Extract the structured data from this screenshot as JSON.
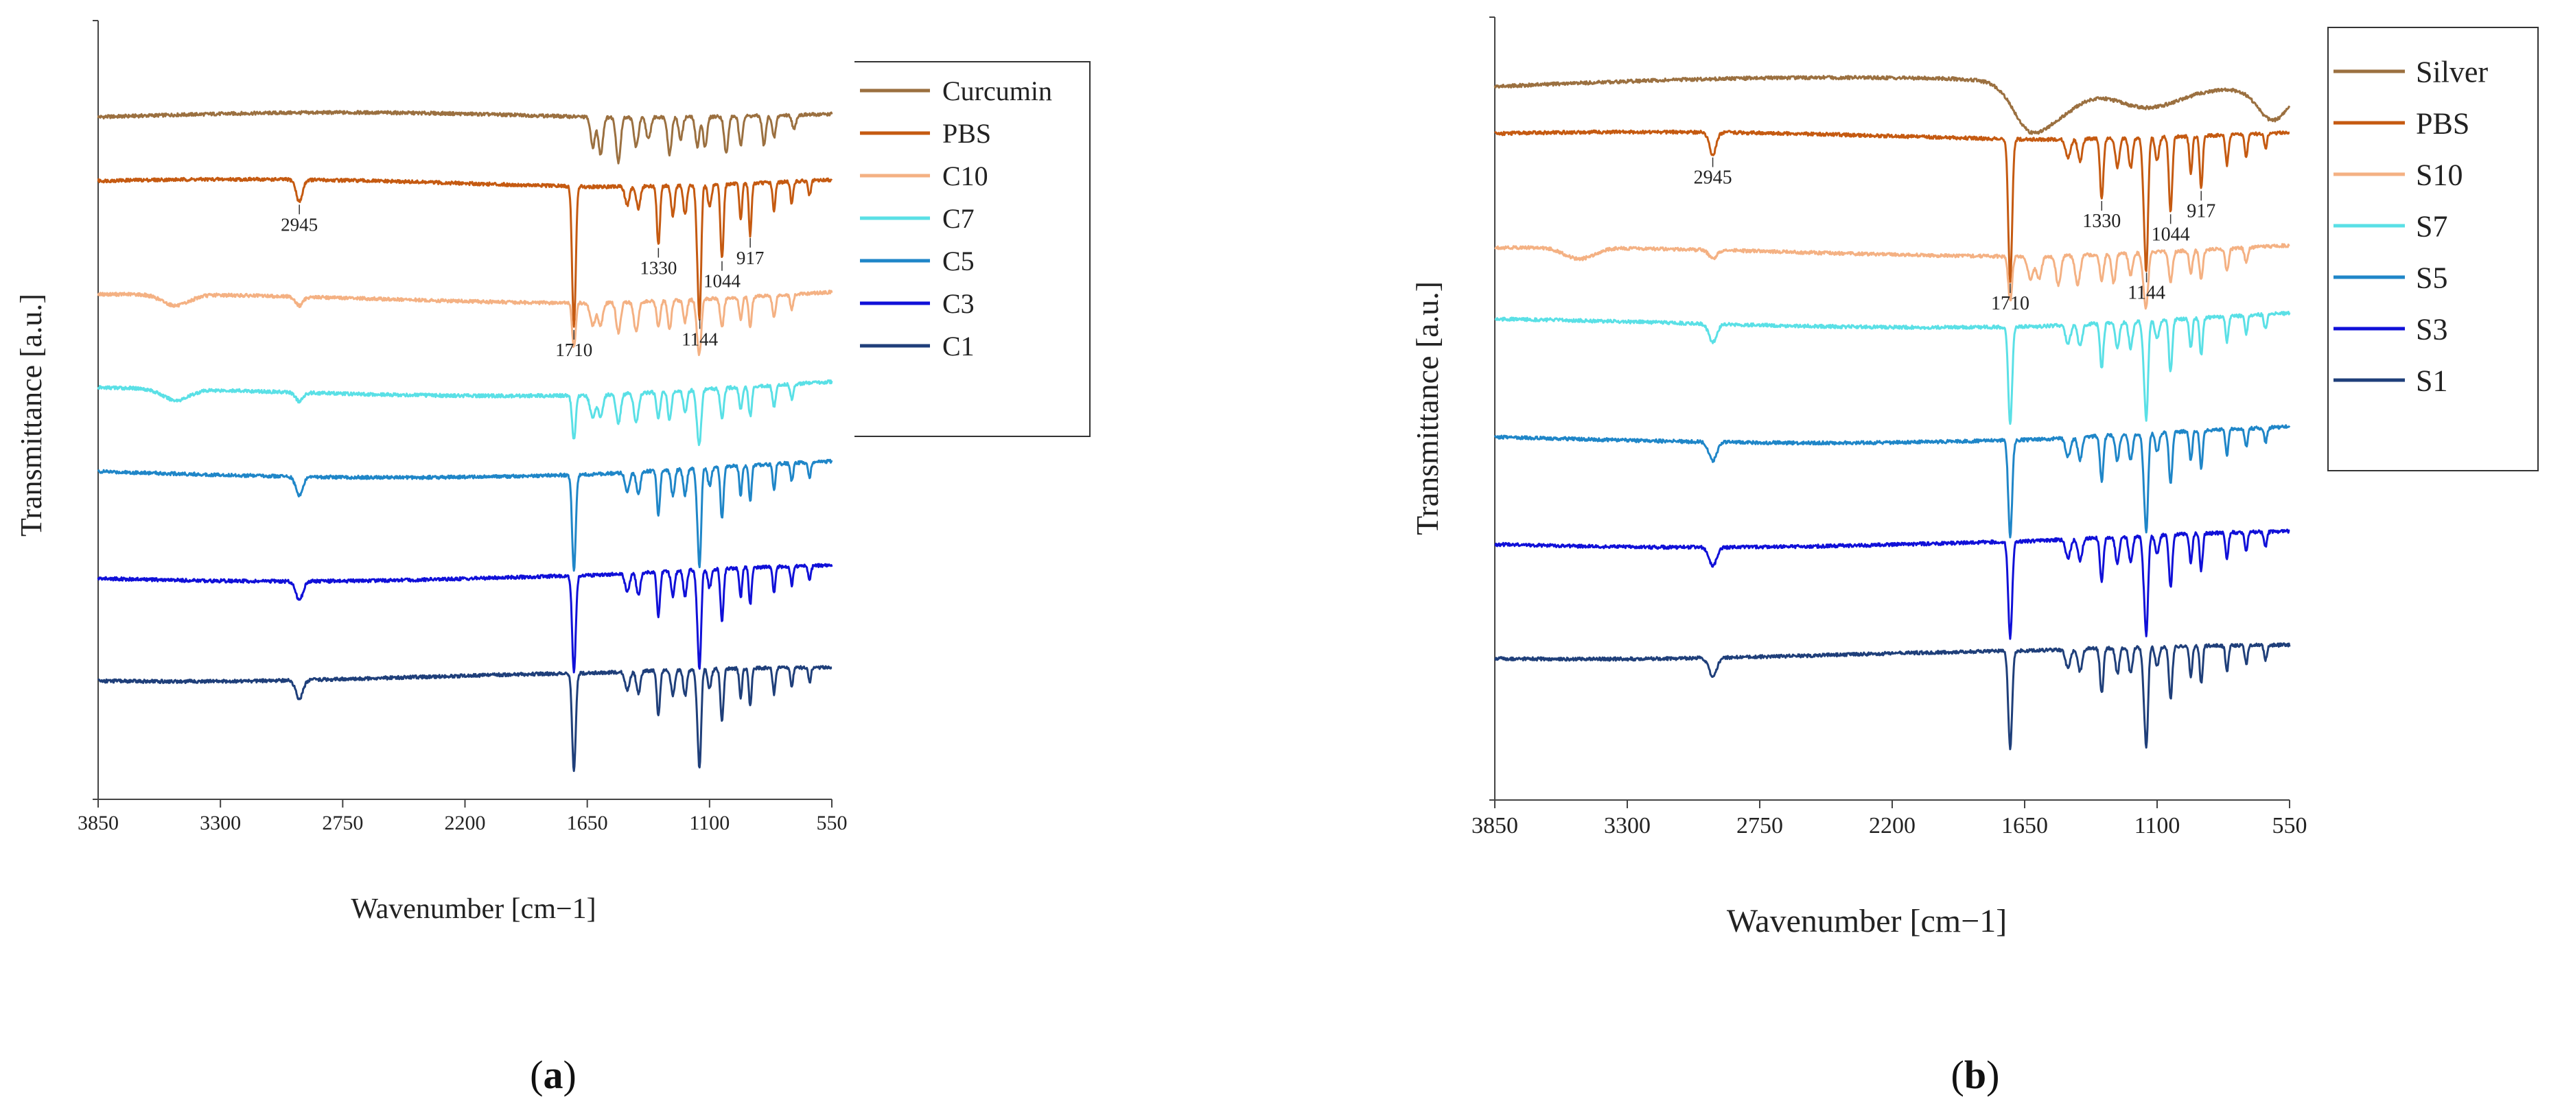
{
  "panels": [
    {
      "caption": "(a)",
      "chart_data": {
        "type": "line",
        "title": "",
        "xlabel": "Wavenumber [cm−1]",
        "ylabel": "Transmittance [a.u.]",
        "xlim": [
          3850,
          550
        ],
        "x_reversed": true,
        "xticks": [
          3850,
          3300,
          2750,
          2200,
          1650,
          1100,
          550
        ],
        "ylim": [
          0,
          105
        ],
        "yticks_shown": false,
        "grid": false,
        "legend_position": "top-right",
        "series": [
          {
            "name": "Curcumin",
            "color": "#9b7040",
            "baseline": 92,
            "profile": "curcumin"
          },
          {
            "name": "PBS",
            "color": "#c55a11",
            "baseline": 83,
            "profile": "pbs"
          },
          {
            "name": "C10",
            "color": "#f4b183",
            "baseline": 67.5,
            "profile": "blend_weak"
          },
          {
            "name": "C7",
            "color": "#5ae0e6",
            "baseline": 55,
            "profile": "blend_weak"
          },
          {
            "name": "C5",
            "color": "#1f86c8",
            "baseline": 44,
            "profile": "pbs_strong"
          },
          {
            "name": "C3",
            "color": "#1010d8",
            "baseline": 30,
            "profile": "pbs_strong"
          },
          {
            "name": "C1",
            "color": "#1f3f7a",
            "baseline": 16.5,
            "profile": "pbs_strong"
          }
        ],
        "annotations": [
          {
            "text": "2945",
            "x": 2945,
            "series": "PBS"
          },
          {
            "text": "1710",
            "x": 1710,
            "series": "PBS"
          },
          {
            "text": "1330",
            "x": 1330,
            "series": "PBS"
          },
          {
            "text": "1144",
            "x": 1144,
            "series": "PBS"
          },
          {
            "text": "1044",
            "x": 1044,
            "series": "PBS"
          },
          {
            "text": "917",
            "x": 917,
            "series": "PBS"
          }
        ]
      }
    },
    {
      "caption": "(b)",
      "chart_data": {
        "type": "line",
        "title": "",
        "xlabel": "Wavenumber [cm−1]",
        "ylabel": "Transmittance [a.u.]",
        "xlim": [
          3850,
          550
        ],
        "x_reversed": true,
        "xticks": [
          3850,
          3300,
          2750,
          2200,
          1650,
          1100,
          550
        ],
        "ylim": [
          0,
          105
        ],
        "yticks_shown": false,
        "grid": false,
        "legend_position": "top-right",
        "series": [
          {
            "name": "Silver",
            "color": "#9b7040",
            "baseline": 96,
            "profile": "silver"
          },
          {
            "name": "PBS",
            "color": "#c55a11",
            "baseline": 89,
            "profile": "pbs"
          },
          {
            "name": "S10",
            "color": "#f4b183",
            "baseline": 73.5,
            "profile": "blend_weak"
          },
          {
            "name": "S7",
            "color": "#5ae0e6",
            "baseline": 64,
            "profile": "pbs_strong"
          },
          {
            "name": "S5",
            "color": "#1f86c8",
            "baseline": 48.5,
            "profile": "pbs_strong"
          },
          {
            "name": "S3",
            "color": "#1010d8",
            "baseline": 34.5,
            "profile": "pbs_strong"
          },
          {
            "name": "S1",
            "color": "#1f3f7a",
            "baseline": 19.5,
            "profile": "pbs_strong"
          }
        ],
        "annotations": [
          {
            "text": "2945",
            "x": 2945,
            "series": "PBS"
          },
          {
            "text": "1710",
            "x": 1710,
            "series": "PBS"
          },
          {
            "text": "1330",
            "x": 1330,
            "series": "PBS"
          },
          {
            "text": "1144",
            "x": 1144,
            "series": "PBS"
          },
          {
            "text": "1044",
            "x": 1044,
            "series": "PBS"
          },
          {
            "text": "917",
            "x": 917,
            "series": "PBS"
          }
        ]
      }
    }
  ]
}
